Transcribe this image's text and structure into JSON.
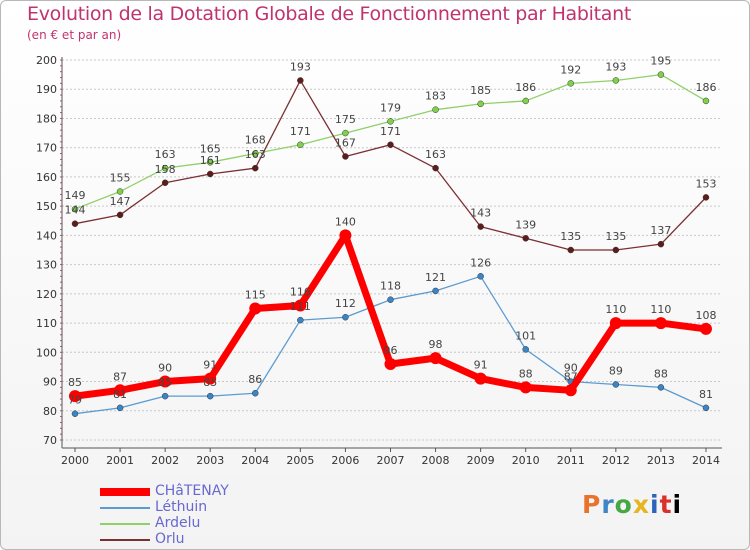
{
  "title": "Evolution de la Dotation Globale de Fonctionnement par Habitant",
  "subtitle": "(en € et par an)",
  "logo": {
    "letters": [
      "P",
      "r",
      "o",
      "x",
      "i",
      "t",
      "i"
    ]
  },
  "chart_data": {
    "type": "line",
    "title": "Evolution de la Dotation Globale de Fonctionnement par Habitant",
    "ylabel": "(en € et par an)",
    "xlabel": "",
    "x": [
      "2000",
      "2001",
      "2002",
      "2003",
      "2004",
      "2005",
      "2006",
      "2007",
      "2008",
      "2009",
      "2010",
      "2011",
      "2012",
      "2013",
      "2014"
    ],
    "ylim": [
      70,
      200
    ],
    "yticks": [
      "70",
      "80",
      "90",
      "100",
      "110",
      "120",
      "130",
      "140",
      "150",
      "160",
      "170",
      "180",
      "190",
      "200"
    ],
    "grid": true,
    "legend_position": "bottom-left",
    "series": [
      {
        "name": "Ardelu",
        "color": "#8fd06a",
        "marker": "#7ed24a",
        "width": 1.3,
        "values": [
          149,
          155,
          163,
          165,
          168,
          171,
          175,
          179,
          183,
          185,
          186,
          192,
          193,
          195,
          186
        ]
      },
      {
        "name": "Orlu",
        "color": "#7a2f33",
        "marker": "#5e1c1c",
        "width": 1.3,
        "values": [
          144,
          147,
          158,
          161,
          163,
          193,
          167,
          171,
          163,
          143,
          139,
          135,
          135,
          137,
          153
        ]
      },
      {
        "name": "Léthuin",
        "color": "#5c9bd0",
        "marker": "#3a85c7",
        "width": 1.3,
        "values": [
          79,
          81,
          85,
          85,
          86,
          111,
          112,
          118,
          121,
          126,
          101,
          90,
          89,
          88,
          81
        ]
      },
      {
        "name": "CHâTENAY",
        "color": "#ff0000",
        "marker": "#ff0000",
        "width": 7,
        "values": [
          85,
          87,
          90,
          91,
          115,
          116,
          140,
          96,
          98,
          91,
          88,
          87,
          110,
          110,
          108
        ]
      }
    ],
    "legend_order": [
      "CHâTENAY",
      "Léthuin",
      "Ardelu",
      "Orlu"
    ]
  }
}
